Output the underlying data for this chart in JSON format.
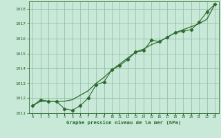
{
  "title": "Graphe pression niveau de la mer (hPa)",
  "xlabel_hours": [
    0,
    1,
    2,
    3,
    4,
    5,
    6,
    7,
    8,
    9,
    10,
    11,
    12,
    13,
    14,
    15,
    16,
    17,
    18,
    19,
    20,
    21,
    22,
    23
  ],
  "line1_y": [
    1011.5,
    1011.9,
    1011.8,
    1011.8,
    1011.3,
    1011.2,
    1011.5,
    1012.0,
    1012.9,
    1013.1,
    1013.9,
    1014.2,
    1014.6,
    1015.1,
    1015.2,
    1015.9,
    1015.8,
    1016.1,
    1016.4,
    1016.5,
    1016.6,
    1017.1,
    1017.8,
    1018.3
  ],
  "line2_y": [
    1011.5,
    1011.8,
    1011.8,
    1011.8,
    1011.8,
    1011.9,
    1012.2,
    1012.5,
    1013.0,
    1013.4,
    1013.9,
    1014.3,
    1014.7,
    1015.1,
    1015.3,
    1015.6,
    1015.8,
    1016.1,
    1016.4,
    1016.6,
    1016.8,
    1017.0,
    1017.3,
    1018.3
  ],
  "line_color": "#2d6a2d",
  "bg_color": "#c8e8d8",
  "grid_color": "#90b8a8",
  "ylim_min": 1011.0,
  "ylim_max": 1018.5,
  "xlim_min": -0.5,
  "xlim_max": 23.5
}
